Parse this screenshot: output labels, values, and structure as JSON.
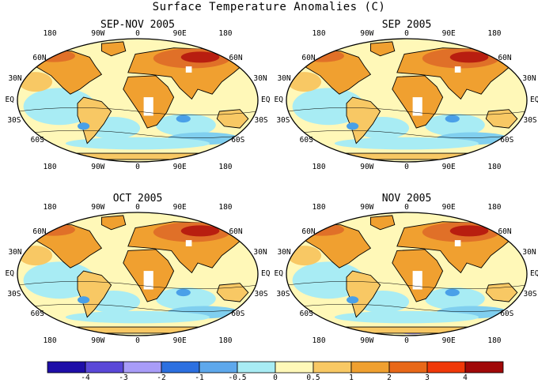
{
  "title": "Surface Temperature Anomalies (C)",
  "colors": {
    "ocean_cool": "#a8ecf4",
    "cool": "#80cfef",
    "cold": "#4aa0e8",
    "neutral": "#fff8b8",
    "warm": "#f8c864",
    "warmer": "#f0a030",
    "hot": "#e07028",
    "hottest": "#b81e10",
    "missing": "#ffffff"
  },
  "panels": [
    {
      "title": "SEP-NOV 2005"
    },
    {
      "title": "SEP 2005"
    },
    {
      "title": "OCT 2005"
    },
    {
      "title": "NOV 2005"
    }
  ],
  "axis_labels": {
    "lon": [
      "180",
      "90W",
      "0",
      "90E",
      "180"
    ],
    "lat_left": [
      "60N",
      "30N",
      "EQ",
      "30S",
      "60S"
    ],
    "lat_right": [
      "60N",
      "30N",
      "EQ",
      "30S",
      "60S"
    ]
  },
  "chart_data": {
    "type": "heatmap",
    "title": "Surface Temperature Anomalies (C)",
    "units": "C",
    "colorbar": {
      "levels": [
        "-4",
        "-3",
        "-2",
        "-1",
        "-0.5",
        "0",
        "0.5",
        "1",
        "2",
        "3",
        "4"
      ],
      "colors": [
        "#1e0ea8",
        "#5a48d8",
        "#a89cf8",
        "#2c70e0",
        "#5ea8ec",
        "#a8ecf4",
        "#fff8b8",
        "#f8c864",
        "#f0a030",
        "#e86818",
        "#f03808",
        "#a00808"
      ]
    },
    "maps": [
      {
        "title": "SEP-NOV 2005",
        "projection": "robinson",
        "lon_ticks": [
          "180",
          "90W",
          "0",
          "90E",
          "180"
        ],
        "lat_ticks": [
          "60N",
          "30N",
          "EQ",
          "30S",
          "60S"
        ]
      },
      {
        "title": "SEP 2005",
        "projection": "robinson",
        "lon_ticks": [
          "180",
          "90W",
          "0",
          "90E",
          "180"
        ],
        "lat_ticks": [
          "60N",
          "30N",
          "EQ",
          "30S",
          "60S"
        ]
      },
      {
        "title": "OCT 2005",
        "projection": "robinson",
        "lon_ticks": [
          "180",
          "90W",
          "0",
          "90E",
          "180"
        ],
        "lat_ticks": [
          "60N",
          "30N",
          "EQ",
          "30S",
          "60S"
        ]
      },
      {
        "title": "NOV 2005",
        "projection": "robinson",
        "lon_ticks": [
          "180",
          "90W",
          "0",
          "90E",
          "180"
        ],
        "lat_ticks": [
          "60N",
          "30N",
          "EQ",
          "30S",
          "60S"
        ]
      }
    ]
  }
}
